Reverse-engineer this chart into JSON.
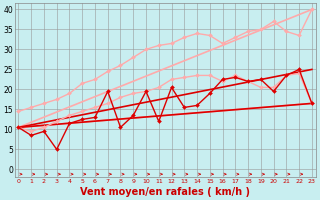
{
  "background_color": "#c8eef0",
  "grid_color": "#999999",
  "xlabel": "Vent moyen/en rafales ( km/h )",
  "xlabel_color": "#cc0000",
  "xlabel_fontsize": 7,
  "ylabel_ticks": [
    0,
    5,
    10,
    15,
    20,
    25,
    30,
    35,
    40
  ],
  "xticks": [
    0,
    1,
    2,
    3,
    4,
    5,
    6,
    7,
    8,
    9,
    10,
    11,
    12,
    13,
    14,
    15,
    16,
    17,
    18,
    19,
    20,
    21,
    22,
    23
  ],
  "xlim": [
    -0.3,
    23.3
  ],
  "ylim": [
    -2,
    41.5
  ],
  "lines": [
    {
      "x": [
        0,
        23
      ],
      "y": [
        10.5,
        16.5
      ],
      "color": "#ffaaaa",
      "lw": 1.2,
      "marker": null
    },
    {
      "x": [
        0,
        23
      ],
      "y": [
        10.5,
        40.0
      ],
      "color": "#ffaaaa",
      "lw": 1.2,
      "marker": null
    },
    {
      "x": [
        0,
        1,
        2,
        3,
        4,
        5,
        6,
        7,
        8,
        9,
        10,
        11,
        12,
        13,
        14,
        15,
        16,
        17,
        18,
        19,
        20,
        21,
        22,
        23
      ],
      "y": [
        14.5,
        15.5,
        16.5,
        17.5,
        19.0,
        21.5,
        22.5,
        24.5,
        26.0,
        28.0,
        30.0,
        31.0,
        31.5,
        33.0,
        34.0,
        33.5,
        31.5,
        33.0,
        34.5,
        35.0,
        37.0,
        34.5,
        33.5,
        40.0
      ],
      "color": "#ffaaaa",
      "lw": 1.0,
      "marker": "D",
      "ms": 2.0
    },
    {
      "x": [
        0,
        1,
        2,
        3,
        4,
        5,
        6,
        7,
        8,
        9,
        10,
        11,
        12,
        13,
        14,
        15,
        16,
        17,
        18,
        19,
        20,
        21,
        22,
        23
      ],
      "y": [
        10.5,
        9.5,
        10.5,
        12.0,
        13.5,
        14.5,
        15.5,
        16.5,
        18.0,
        19.0,
        19.5,
        20.5,
        22.5,
        23.0,
        23.5,
        23.5,
        22.0,
        23.5,
        22.0,
        20.5,
        20.5,
        23.5,
        24.0,
        16.5
      ],
      "color": "#ffaaaa",
      "lw": 1.0,
      "marker": "D",
      "ms": 2.0
    },
    {
      "x": [
        0,
        23
      ],
      "y": [
        10.5,
        16.5
      ],
      "color": "#dd0000",
      "lw": 1.2,
      "marker": null
    },
    {
      "x": [
        0,
        23
      ],
      "y": [
        10.5,
        25.0
      ],
      "color": "#dd0000",
      "lw": 1.2,
      "marker": null
    },
    {
      "x": [
        0,
        1,
        2,
        3,
        4,
        5,
        6,
        7,
        8,
        9,
        10,
        11,
        12,
        13,
        14,
        15,
        16,
        17,
        18,
        19,
        20,
        21,
        22,
        23
      ],
      "y": [
        10.5,
        8.5,
        9.5,
        5.0,
        11.5,
        12.5,
        13.0,
        19.5,
        10.5,
        13.5,
        19.5,
        12.0,
        20.5,
        15.5,
        16.0,
        19.0,
        22.5,
        23.0,
        22.0,
        22.5,
        19.5,
        23.5,
        25.0,
        16.5
      ],
      "color": "#dd0000",
      "lw": 1.0,
      "marker": "D",
      "ms": 2.0
    }
  ],
  "arrows": {
    "y": -1.2,
    "x_start": 0,
    "x_end": 23,
    "step": 1.0,
    "color": "#cc0000",
    "lw": 0.5
  }
}
